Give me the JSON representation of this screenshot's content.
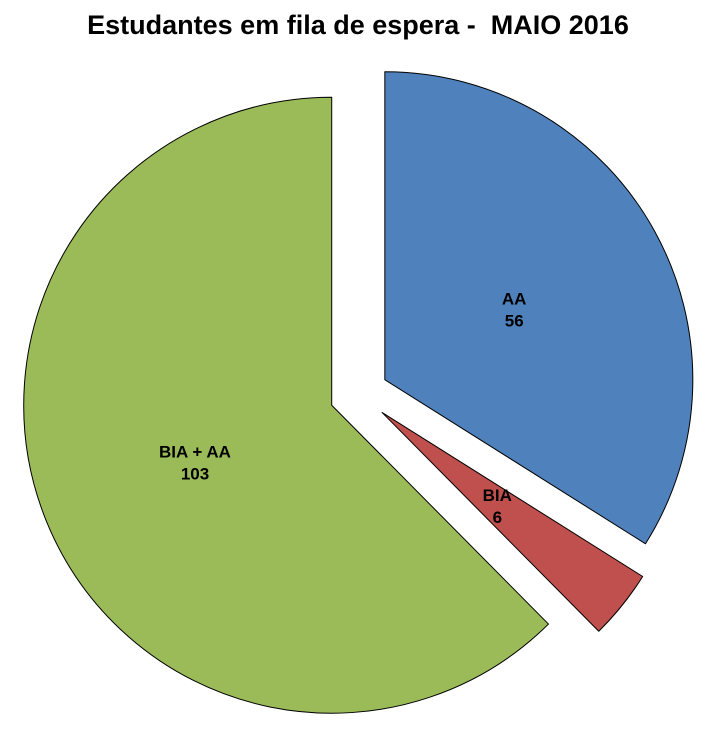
{
  "title": "Estudantes em fila de espera -  MAIO 2016",
  "chart_data": {
    "type": "pie",
    "title": "Estudantes em fila de espera -  MAIO 2016",
    "slices": [
      {
        "label": "AA",
        "value": 56,
        "color": "#4F81BD"
      },
      {
        "label": "BIA",
        "value": 6,
        "color": "#C0504D"
      },
      {
        "label": "BIA + AA",
        "value": 103,
        "color": "#9BBB59"
      }
    ],
    "start_angle_deg": 0,
    "direction": "clockwise",
    "exploded": true,
    "data_labels": "name-and-value-inside",
    "legend": "none",
    "outline_color": "#000000",
    "label_color": "#000000",
    "background": "#FFFFFF"
  }
}
